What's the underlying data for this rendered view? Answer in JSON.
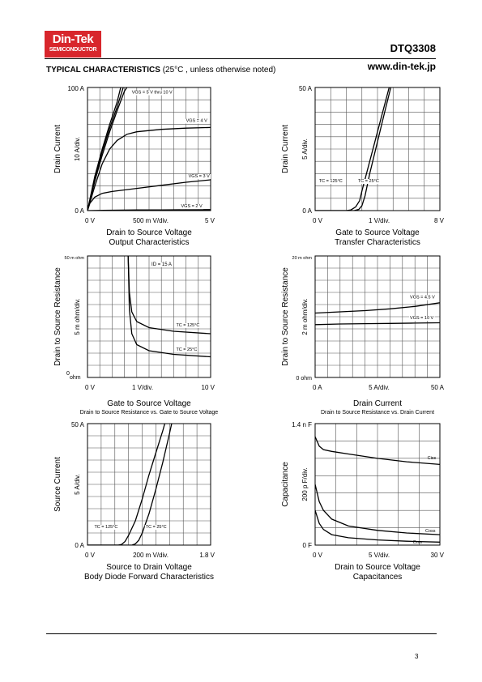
{
  "header": {
    "logo_brand": "Din-Tek",
    "logo_sub": "SEMICONDUCTOR",
    "part_number": "DTQ3308",
    "website": "www.din-tek.jp",
    "section_title": "TYPICAL CHARACTERISTICS",
    "section_note": "(25°C , unless otherwise noted)"
  },
  "footer": {
    "page_number": "3"
  },
  "chart_data": [
    {
      "id": "output",
      "type": "line",
      "ylabel": "Drain Current",
      "yscale": "10  A/div.",
      "ytick_top": "100  A",
      "ytick_bottom": "0  A",
      "xtick_left": "0  V",
      "xtick_mid": "500 m  V/div.",
      "xtick_right": "5  V",
      "xlabel": "Drain to Source Voltage",
      "subtitle": "Output Characteristics",
      "xlim": [
        0,
        5
      ],
      "ylim": [
        0,
        100
      ],
      "series": [
        {
          "name": "VGS = 5 V thru 10 V",
          "points": [
            [
              0,
              0
            ],
            [
              0.3,
              24
            ],
            [
              0.6,
              45
            ],
            [
              0.9,
              64
            ],
            [
              1.2,
              81
            ],
            [
              1.5,
              97
            ],
            [
              1.6,
              100
            ]
          ]
        },
        {
          "name": "",
          "points": [
            [
              0,
              0
            ],
            [
              0.3,
              26
            ],
            [
              0.6,
              48
            ],
            [
              0.9,
              67
            ],
            [
              1.2,
              84
            ],
            [
              1.45,
              100
            ]
          ]
        },
        {
          "name": "",
          "points": [
            [
              0,
              0
            ],
            [
              0.3,
              28
            ],
            [
              0.6,
              50
            ],
            [
              0.9,
              70
            ],
            [
              1.2,
              88
            ],
            [
              1.35,
              100
            ]
          ]
        },
        {
          "name": "VGS = 4 V",
          "points": [
            [
              0,
              0
            ],
            [
              0.3,
              20
            ],
            [
              0.6,
              38
            ],
            [
              0.9,
              50
            ],
            [
              1.2,
              57
            ],
            [
              1.6,
              62
            ],
            [
              2,
              64
            ],
            [
              3,
              66
            ],
            [
              4,
              67
            ],
            [
              5,
              67.5
            ]
          ]
        },
        {
          "name": "VGS = 3 V",
          "points": [
            [
              0,
              0
            ],
            [
              0.1,
              6
            ],
            [
              0.3,
              11
            ],
            [
              0.6,
              14
            ],
            [
              1,
              15.5
            ],
            [
              2,
              18
            ],
            [
              3,
              20.5
            ],
            [
              4,
              23
            ],
            [
              5,
              25
            ]
          ]
        },
        {
          "name": "VGS = 2 V",
          "points": [
            [
              0,
              0
            ],
            [
              1,
              0.3
            ],
            [
              2,
              0.5
            ],
            [
              3,
              0.6
            ],
            [
              4,
              0.7
            ],
            [
              5,
              0.8
            ]
          ]
        }
      ]
    },
    {
      "id": "transfer",
      "type": "line",
      "ylabel": "Drain Current",
      "yscale": "5  A/div.",
      "ytick_top": "50  A",
      "ytick_bottom": "0  A",
      "xtick_left": "0  V",
      "xtick_mid": "1  V/div.",
      "xtick_right": "8  V",
      "xlabel": "Gate to Source Voltage",
      "subtitle": "Transfer Characteristics",
      "xlim": [
        0,
        8
      ],
      "ylim": [
        0,
        50
      ],
      "series": [
        {
          "name": "TC = 125°C",
          "points": [
            [
              0,
              0
            ],
            [
              2,
              0
            ],
            [
              2.3,
              0.3
            ],
            [
              2.6,
              1.5
            ],
            [
              2.85,
              4
            ],
            [
              3,
              8
            ],
            [
              3.5,
              20
            ],
            [
              4,
              32
            ],
            [
              4.5,
              44
            ],
            [
              4.75,
              50
            ]
          ]
        },
        {
          "name": "TC = 25°C",
          "points": [
            [
              0,
              0
            ],
            [
              2.5,
              0
            ],
            [
              2.8,
              0.5
            ],
            [
              3,
              2
            ],
            [
              3.2,
              6
            ],
            [
              3.5,
              15
            ],
            [
              4,
              28
            ],
            [
              4.5,
              41
            ],
            [
              4.85,
              50
            ]
          ]
        }
      ]
    },
    {
      "id": "rds_vgs",
      "type": "line",
      "ylabel": "Drain to Source Resistance",
      "yscale": "5 m ohm/div.",
      "ytick_top": "50 m  ohm",
      "ytick_bottom_num": "0",
      "ytick_bottom_unit": "ohm",
      "xtick_left": "0  V",
      "xtick_mid": "1  V/div.",
      "xtick_right": "10  V",
      "xlabel": "Gate to Source Voltage",
      "subtitle": "Drain to Source Resistance vs. Gate to Source Voltage",
      "annotation": "ID = 15 A",
      "xlim": [
        0,
        10
      ],
      "ylim": [
        0,
        50
      ],
      "series": [
        {
          "name": "TC = 125°C",
          "points": [
            [
              3.3,
              50
            ],
            [
              3.4,
              35
            ],
            [
              3.6,
              27
            ],
            [
              4,
              23
            ],
            [
              5,
              20.5
            ],
            [
              7,
              19
            ],
            [
              10,
              18
            ]
          ]
        },
        {
          "name": "TC = 25°C",
          "points": [
            [
              3.3,
              50
            ],
            [
              3.4,
              28
            ],
            [
              3.6,
              18
            ],
            [
              4,
              13.5
            ],
            [
              5,
              11
            ],
            [
              7,
              9.5
            ],
            [
              10,
              8.5
            ]
          ]
        }
      ]
    },
    {
      "id": "rds_id",
      "type": "line",
      "ylabel": "Drain to Source Resistance",
      "yscale": "2 m ohm/div.",
      "ytick_top": "20 m  ohm",
      "ytick_bottom": "0  ohm",
      "xtick_left": "0  A",
      "xtick_mid": "5  A/div.",
      "xtick_right": "50  A",
      "xlabel": "Drain Current",
      "subtitle": "Drain to Source Resistance vs. Drain Current",
      "xlim": [
        0,
        50
      ],
      "ylim": [
        0,
        20
      ],
      "series": [
        {
          "name": "VGS = 4.5 V",
          "points": [
            [
              0,
              10.6
            ],
            [
              10,
              10.8
            ],
            [
              20,
              11
            ],
            [
              30,
              11.3
            ],
            [
              40,
              11.7
            ],
            [
              50,
              12.3
            ]
          ]
        },
        {
          "name": "VGS = 10 V",
          "points": [
            [
              0,
              8.7
            ],
            [
              10,
              8.8
            ],
            [
              20,
              8.85
            ],
            [
              30,
              8.9
            ],
            [
              40,
              8.95
            ],
            [
              50,
              9
            ]
          ]
        }
      ]
    },
    {
      "id": "body_diode",
      "type": "line",
      "ylabel": "Source Current",
      "yscale": "5  A/div.",
      "ytick_top": "50  A",
      "ytick_bottom": "0  A",
      "xtick_left": "0  V",
      "xtick_mid": "200 m  V/div.",
      "xtick_right": "1.8  V",
      "xlabel": "Source to Drain Voltage",
      "subtitle": "Body Diode Forward Characteristics",
      "xlim": [
        0,
        1.8
      ],
      "ylim": [
        0,
        50
      ],
      "series": [
        {
          "name": "TC = 125°C",
          "points": [
            [
              0,
              0
            ],
            [
              0.45,
              0
            ],
            [
              0.5,
              0.3
            ],
            [
              0.55,
              1.5
            ],
            [
              0.6,
              4
            ],
            [
              0.7,
              10
            ],
            [
              0.8,
              19
            ],
            [
              0.9,
              29
            ],
            [
              1.0,
              38
            ],
            [
              1.1,
              47
            ],
            [
              1.13,
              50
            ]
          ]
        },
        {
          "name": "TC = 25°C",
          "points": [
            [
              0,
              0
            ],
            [
              0.65,
              0
            ],
            [
              0.7,
              0.5
            ],
            [
              0.75,
              2
            ],
            [
              0.8,
              5
            ],
            [
              0.9,
              13
            ],
            [
              1.0,
              23
            ],
            [
              1.1,
              34
            ],
            [
              1.2,
              46
            ],
            [
              1.23,
              50
            ]
          ]
        }
      ]
    },
    {
      "id": "capacitance",
      "type": "line",
      "ylabel": "Capacitance",
      "yscale": "200 p F/div.",
      "ytick_top": "1.4 n  F",
      "ytick_bottom": "0  F",
      "xtick_left": "0  V",
      "xtick_mid": "5  V/div.",
      "xtick_right": "30  V",
      "xlabel": "Drain to Source Voltage",
      "subtitle": "Capacitances",
      "xlim": [
        0,
        30
      ],
      "ylim": [
        0,
        1400
      ],
      "series": [
        {
          "name": "Ciss",
          "points": [
            [
              0,
              1250
            ],
            [
              1,
              1140
            ],
            [
              2,
              1100
            ],
            [
              4,
              1080
            ],
            [
              8,
              1050
            ],
            [
              15,
              1000
            ],
            [
              22,
              960
            ],
            [
              30,
              930
            ]
          ]
        },
        {
          "name": "Coss",
          "points": [
            [
              0,
              700
            ],
            [
              1,
              500
            ],
            [
              2,
              400
            ],
            [
              4,
              300
            ],
            [
              8,
              220
            ],
            [
              15,
              170
            ],
            [
              22,
              140
            ],
            [
              30,
              120
            ]
          ]
        },
        {
          "name": "Crss",
          "points": [
            [
              0,
              400
            ],
            [
              1,
              250
            ],
            [
              2,
              180
            ],
            [
              4,
              120
            ],
            [
              8,
              85
            ],
            [
              15,
              60
            ],
            [
              22,
              45
            ],
            [
              30,
              35
            ]
          ]
        }
      ]
    }
  ]
}
